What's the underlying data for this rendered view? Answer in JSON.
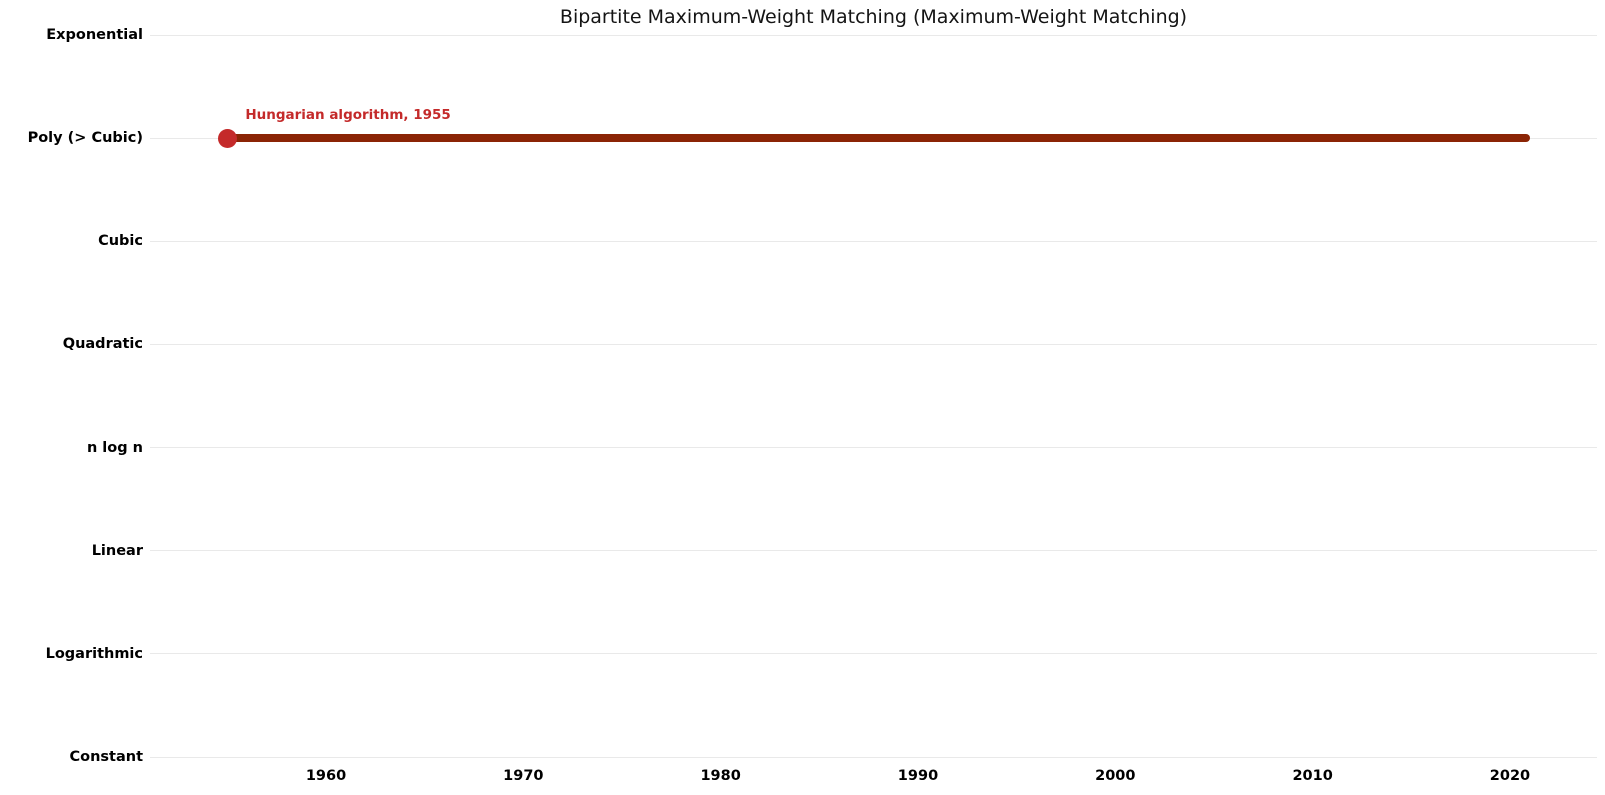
{
  "chart_data": {
    "type": "line",
    "title": "Bipartite Maximum-Weight Matching (Maximum-Weight Matching)",
    "xlabel": "",
    "ylabel": "",
    "y_categories_top_to_bottom": [
      "Exponential",
      "Poly (> Cubic)",
      "Cubic",
      "Quadratic",
      "n log n",
      "Linear",
      "Logarithmic",
      "Constant"
    ],
    "x_ticks": [
      1960,
      1970,
      1980,
      1990,
      2000,
      2010,
      2020
    ],
    "x_range": [
      1951,
      2024
    ],
    "grid": "horizontal-only",
    "legend": "none",
    "background_color": "#ffffff",
    "gridline_color": "#e9e9e9",
    "title_color": "#141414",
    "tick_label_color": "#000000",
    "series": [
      {
        "name": "Hungarian algorithm",
        "annotation": "Hungarian algorithm, 1955",
        "y_category": "Poly (> Cubic)",
        "start_year": 1955,
        "end_year": 2021,
        "line_color": "#8b2405",
        "marker_color": "#c42a2a",
        "annotation_color": "#c42a2a"
      }
    ]
  }
}
